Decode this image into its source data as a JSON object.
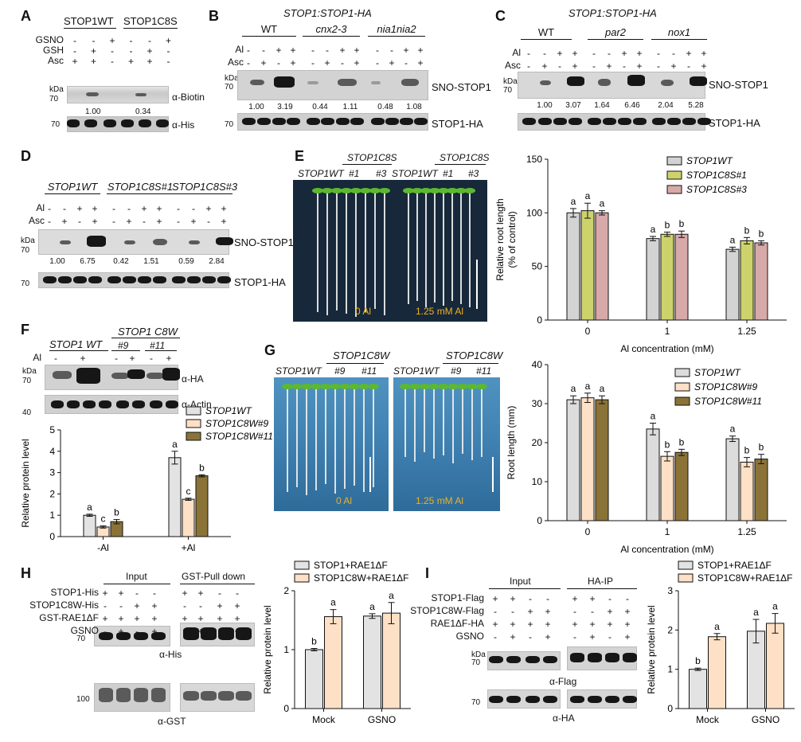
{
  "panels": {
    "A": {
      "letter": "A",
      "groups": [
        "STOP1WT",
        "STOP1C8S"
      ],
      "rows": [
        {
          "label": "GSNO",
          "signs": [
            "-",
            "-",
            "+",
            "-",
            "-",
            "+"
          ]
        },
        {
          "label": "GSH",
          "signs": [
            "-",
            "+",
            "-",
            "-",
            "+",
            "-"
          ]
        },
        {
          "label": "Asc",
          "signs": [
            "+",
            "+",
            "-",
            "+",
            "+",
            "-"
          ]
        }
      ],
      "kda": "kDa",
      "marker_top": "70",
      "marker_bottom": "70",
      "values": [
        "1.00",
        "0.34"
      ],
      "label_top": "α-Biotin",
      "label_bottom": "α-His"
    },
    "B": {
      "letter": "B",
      "title": "STOP1:STOP1-HA",
      "groups": [
        "WT",
        "cnx2-3",
        "nia1nia2"
      ],
      "rows": [
        {
          "label": "Al",
          "signs": [
            "-",
            "-",
            "+",
            "+",
            "-",
            "-",
            "+",
            "+",
            "-",
            "-",
            "+",
            "+"
          ]
        },
        {
          "label": "Asc",
          "signs": [
            "-",
            "+",
            "-",
            "+",
            "-",
            "+",
            "-",
            "+",
            "-",
            "+",
            "-",
            "+"
          ]
        }
      ],
      "kda": "kDa",
      "marker_top": "70",
      "marker_bottom": "70",
      "values": [
        "1.00",
        "3.19",
        "0.44",
        "1.11",
        "0.48",
        "1.08"
      ],
      "label_top": "SNO-STOP1",
      "label_bottom": "STOP1-HA"
    },
    "C": {
      "letter": "C",
      "title": "STOP1:STOP1-HA",
      "groups": [
        "WT",
        "par2",
        "nox1"
      ],
      "rows": [
        {
          "label": "Al",
          "signs": [
            "-",
            "-",
            "+",
            "+",
            "-",
            "-",
            "+",
            "+",
            "-",
            "-",
            "+",
            "+"
          ]
        },
        {
          "label": "Asc",
          "signs": [
            "-",
            "+",
            "-",
            "+",
            "-",
            "+",
            "-",
            "+",
            "-",
            "+",
            "-",
            "+"
          ]
        }
      ],
      "kda": "kDa",
      "marker_top": "70",
      "values": [
        "1.00",
        "3.07",
        "1.64",
        "6.46",
        "2.04",
        "5.28"
      ],
      "label_top": "SNO-STOP1",
      "label_bottom": "STOP1-HA"
    },
    "D": {
      "letter": "D",
      "groups": [
        "STOP1WT",
        "STOP1C8S#1",
        "STOP1C8S#3"
      ],
      "rows": [
        {
          "label": "Al",
          "signs": [
            "-",
            "-",
            "+",
            "+",
            "-",
            "-",
            "+",
            "+",
            "-",
            "-",
            "+",
            "+"
          ]
        },
        {
          "label": "Asc",
          "signs": [
            "-",
            "+",
            "-",
            "+",
            "-",
            "+",
            "-",
            "+",
            "-",
            "+",
            "-",
            "+"
          ]
        }
      ],
      "kda": "kDa",
      "marker_top": "70",
      "marker_bottom": "70",
      "values": [
        "1.00",
        "6.75",
        "0.42",
        "1.51",
        "0.59",
        "2.84"
      ],
      "label_top": "SNO-STOP1",
      "label_bottom": "STOP1-HA"
    },
    "E": {
      "letter": "E",
      "photo_header_group": "STOP1C8S",
      "photo_labels": [
        "STOP1WT",
        "#1",
        "#3",
        "STOP1WT",
        "#1",
        "#3"
      ],
      "photo_text_left": "0 Al",
      "photo_text_right": "1.25 mM Al"
    },
    "F": {
      "letter": "F",
      "groups": [
        "STOP1 WT",
        "STOP1 C8W",
        "#9",
        "#11"
      ],
      "rows": [
        {
          "label": "Al",
          "signs": [
            "-",
            "+",
            "-",
            "+",
            "-",
            "+"
          ]
        }
      ],
      "kda": "kDa",
      "marker_top": "70",
      "marker_bottom": "40",
      "label_top": "α-HA",
      "label_bottom": "α-Actin"
    },
    "G": {
      "letter": "G",
      "photo_labels_left": [
        "STOP1WT",
        "#9",
        "#11"
      ],
      "photo_labels_right": [
        "STOP1WT",
        "#9",
        "#11"
      ],
      "group_left": "STOP1C8W",
      "group_right": "STOP1C8W",
      "photo_text_left": "0 Al",
      "photo_text_right": "1.25 mM Al"
    },
    "H": {
      "letter": "H",
      "header_left": "Input",
      "header_right": "GST-Pull down",
      "rows": [
        {
          "label": "STOP1-His",
          "signs": [
            "+",
            "+",
            "-",
            "-",
            "-",
            "+",
            "+",
            "-",
            "-"
          ]
        },
        {
          "label": "STOP1C8W-His",
          "signs": [
            "-",
            "-",
            "+",
            "+",
            "-",
            "-",
            "-",
            "+",
            "+"
          ]
        },
        {
          "label": "GST-RAE1ΔF",
          "signs": [
            "+",
            "+",
            "+",
            "+",
            "+",
            "+",
            "+",
            "+",
            "+"
          ]
        },
        {
          "label": "GSNO",
          "signs": [
            "-",
            "+",
            "-",
            "+",
            "-",
            "-",
            "+",
            "-",
            "+"
          ]
        }
      ],
      "marker_top": "70",
      "marker_bottom": "100",
      "label_top": "α-His",
      "label_bottom": "α-GST"
    },
    "I": {
      "letter": "I",
      "header_left": "Input",
      "header_right": "HA-IP",
      "rows": [
        {
          "label": "STOP1-Flag",
          "signs": [
            "+",
            "+",
            "-",
            "-",
            "+",
            "+",
            "-",
            "-"
          ]
        },
        {
          "label": "STOP1C8W-Flag",
          "signs": [
            "-",
            "-",
            "+",
            "+",
            "-",
            "-",
            "+",
            "+"
          ]
        },
        {
          "label": "RAE1ΔF-HA",
          "signs": [
            "+",
            "+",
            "+",
            "+",
            "+",
            "+",
            "+",
            "+"
          ]
        },
        {
          "label": "GSNO",
          "signs": [
            "-",
            "+",
            "-",
            "+",
            "-",
            "+",
            "-",
            "+"
          ]
        }
      ],
      "kda": "kDa",
      "marker_top": "70",
      "marker_bottom": "70",
      "label_top": "α-Flag",
      "label_bottom": "α-HA"
    }
  },
  "chart_data": [
    {
      "id": "E",
      "type": "bar",
      "categories": [
        "0",
        "1",
        "1.25"
      ],
      "xlabel": "Al concentration (mM)",
      "ylabel": "Relative root length (% of control)",
      "ylim": [
        0,
        150
      ],
      "yticks": [
        0,
        50,
        100,
        150
      ],
      "legend_position": "top-right",
      "series": [
        {
          "name": "STOP1WT",
          "color": "#d3d3d3",
          "values": [
            100,
            76,
            66
          ],
          "errors": [
            4,
            2,
            2
          ],
          "letters": [
            "a",
            "a",
            "a"
          ]
        },
        {
          "name": "STOP1C8S#1",
          "color": "#cdd36a",
          "values": [
            102,
            80,
            74
          ],
          "errors": [
            7,
            2,
            3
          ],
          "letters": [
            "a",
            "b",
            "b"
          ]
        },
        {
          "name": "STOP1C8S#3",
          "color": "#d8a9a9",
          "values": [
            100,
            80,
            72
          ],
          "errors": [
            2,
            3,
            2
          ],
          "letters": [
            "a",
            "b",
            "b"
          ]
        }
      ]
    },
    {
      "id": "F",
      "type": "bar",
      "categories": [
        "-Al",
        "+Al"
      ],
      "ylabel": "Relative protein level",
      "ylim": [
        0,
        5
      ],
      "yticks": [
        0,
        1,
        2,
        3,
        4,
        5
      ],
      "legend_position": "top-right",
      "series": [
        {
          "name": "STOP1WT",
          "color": "#e3e3e3",
          "values": [
            1.0,
            3.7
          ],
          "errors": [
            0.05,
            0.3
          ],
          "letters": [
            "a",
            "a"
          ]
        },
        {
          "name": "STOP1C8W#9",
          "color": "#fde0c5",
          "values": [
            0.45,
            1.75
          ],
          "errors": [
            0.05,
            0.05
          ],
          "letters": [
            "c",
            "c"
          ]
        },
        {
          "name": "STOP1C8W#11",
          "color": "#8b7338",
          "values": [
            0.7,
            2.85
          ],
          "errors": [
            0.1,
            0.05
          ],
          "letters": [
            "b",
            "b"
          ]
        }
      ]
    },
    {
      "id": "G",
      "type": "bar",
      "categories": [
        "0",
        "1",
        "1.25"
      ],
      "xlabel": "Al concentration (mM)",
      "ylabel": "Root length (mm)",
      "ylim": [
        0,
        40
      ],
      "yticks": [
        0,
        10,
        20,
        30,
        40
      ],
      "legend_position": "top-right",
      "series": [
        {
          "name": "STOP1WT",
          "color": "#dcdcdc",
          "values": [
            31,
            23.5,
            21
          ],
          "errors": [
            1,
            1.5,
            0.7
          ],
          "letters": [
            "a",
            "a",
            "a"
          ]
        },
        {
          "name": "STOP1C8W#9",
          "color": "#fde0c5",
          "values": [
            31.5,
            16.5,
            15
          ],
          "errors": [
            1.2,
            1.2,
            1.2
          ],
          "letters": [
            "a",
            "b",
            "b"
          ]
        },
        {
          "name": "STOP1C8W#11",
          "color": "#8b7338",
          "values": [
            31,
            17.5,
            15.8
          ],
          "errors": [
            1,
            0.8,
            1.2
          ],
          "letters": [
            "a",
            "b",
            "b"
          ]
        }
      ]
    },
    {
      "id": "H",
      "type": "bar",
      "categories": [
        "Mock",
        "GSNO"
      ],
      "ylabel": "Relative protein level",
      "ylim": [
        0,
        2
      ],
      "yticks": [
        0,
        1,
        2
      ],
      "legend_position": "top",
      "series": [
        {
          "name": "STOP1+RAE1ΔF",
          "color": "#e3e3e3",
          "values": [
            1.0,
            1.57
          ],
          "errors": [
            0.02,
            0.04
          ],
          "letters": [
            "b",
            "a"
          ]
        },
        {
          "name": "STOP1C8W+RAE1ΔF",
          "color": "#fde0c5",
          "values": [
            1.56,
            1.62
          ],
          "errors": [
            0.12,
            0.18
          ],
          "letters": [
            "a",
            "a"
          ]
        }
      ]
    },
    {
      "id": "I",
      "type": "bar",
      "categories": [
        "Mock",
        "GSNO"
      ],
      "ylabel": "Relative protein level",
      "ylim": [
        0,
        3
      ],
      "yticks": [
        0,
        1,
        2,
        3
      ],
      "legend_position": "top",
      "series": [
        {
          "name": "STOP1+RAE1ΔF",
          "color": "#e3e3e3",
          "values": [
            1.0,
            1.97
          ],
          "errors": [
            0.03,
            0.3
          ],
          "letters": [
            "b",
            "a"
          ]
        },
        {
          "name": "STOP1C8W+RAE1ΔF",
          "color": "#fde0c5",
          "values": [
            1.83,
            2.17
          ],
          "errors": [
            0.08,
            0.25
          ],
          "letters": [
            "a",
            "a"
          ]
        }
      ]
    }
  ]
}
